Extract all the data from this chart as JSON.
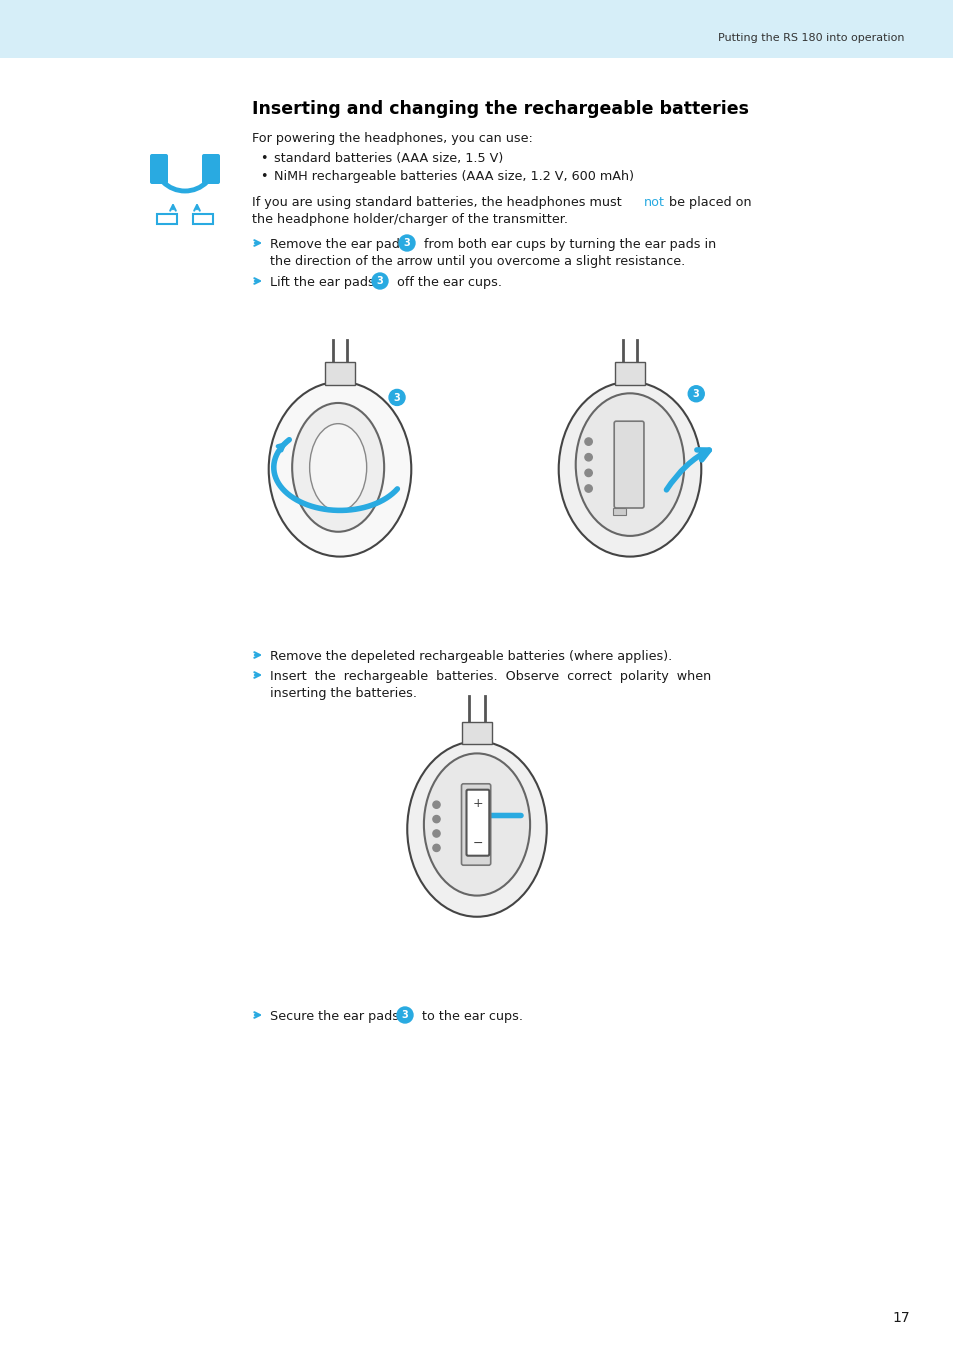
{
  "page_bg": "#ffffff",
  "header_bg": "#d6eef8",
  "header_text": "Putting the RS 180 into operation",
  "header_text_color": "#333333",
  "title": "Inserting and changing the rechargeable batteries",
  "title_color": "#000000",
  "title_fontsize": 12.5,
  "body_fontsize": 9.2,
  "body_color": "#1a1a1a",
  "blue": "#29aae1",
  "white": "#ffffff",
  "page_number": "17",
  "gray_line": "#888888",
  "gray_light": "#cccccc",
  "gray_mid": "#999999",
  "gray_fill": "#f5f5f5",
  "dark_gray": "#555555"
}
